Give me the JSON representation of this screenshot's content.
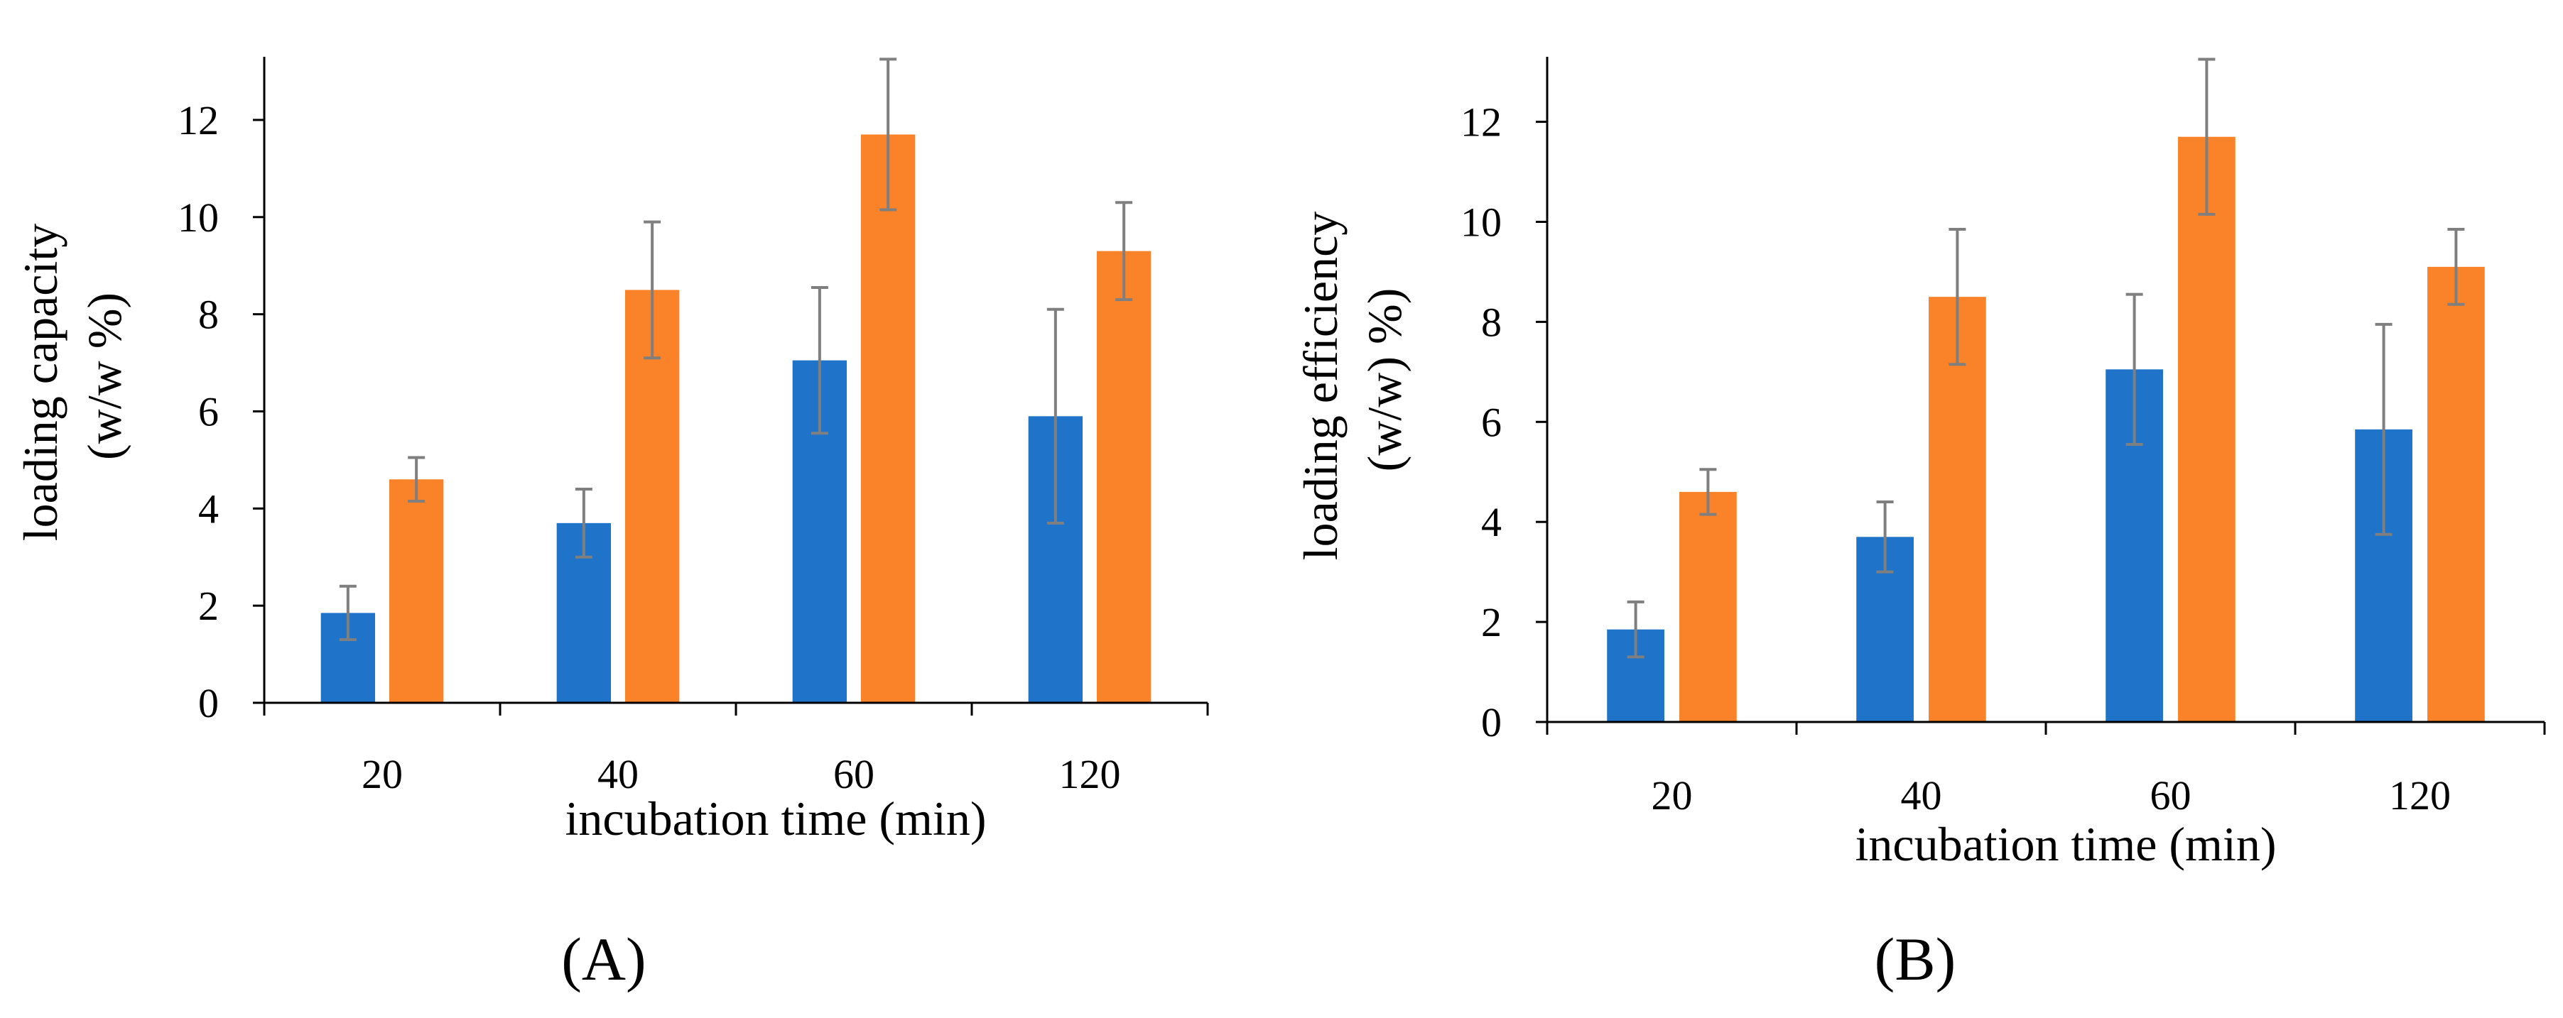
{
  "colors": {
    "series1": "#1f73c8",
    "series2": "#fa8228",
    "error_bar": "#7f7f7f",
    "axis": "#000000"
  },
  "chart_data": [
    {
      "type": "bar",
      "panel_label": "(A)",
      "title": "",
      "xlabel": "incubation time (min)",
      "ylabel_lines": [
        "loading capacity",
        "(w/w %)"
      ],
      "categories": [
        "20",
        "40",
        "60",
        "120"
      ],
      "ylim": [
        0,
        13.3
      ],
      "yticks": [
        0,
        2,
        4,
        6,
        8,
        10,
        12
      ],
      "ytick_labels": [
        "0",
        "2",
        "4",
        "6",
        "8",
        "10",
        "12"
      ],
      "grid": false,
      "legend": "none",
      "series": [
        {
          "name": "series 1",
          "color": "#1f73c8",
          "values": [
            1.85,
            3.7,
            7.05,
            5.9
          ],
          "errors": [
            0.55,
            0.7,
            1.5,
            2.2
          ]
        },
        {
          "name": "series 2",
          "color": "#fa8228",
          "values": [
            4.6,
            8.5,
            11.7,
            9.3
          ],
          "errors": [
            0.45,
            1.4,
            1.55,
            1.0
          ]
        }
      ]
    },
    {
      "type": "bar",
      "panel_label": "(B)",
      "title": "",
      "xlabel": "incubation time (min)",
      "ylabel_lines": [
        "loading efficiency",
        "(w/w) %)"
      ],
      "categories": [
        "20",
        "40",
        "60",
        "120"
      ],
      "ylim": [
        0,
        13.3
      ],
      "yticks": [
        0,
        2,
        4,
        6,
        8,
        10,
        12
      ],
      "ytick_labels": [
        "0",
        "2",
        "4",
        "6",
        "8",
        "10",
        "12"
      ],
      "grid": false,
      "legend": "none",
      "series": [
        {
          "name": "series 1",
          "color": "#1f73c8",
          "values": [
            1.85,
            3.7,
            7.05,
            5.85
          ],
          "errors": [
            0.55,
            0.7,
            1.5,
            2.1
          ]
        },
        {
          "name": "series 2",
          "color": "#fa8228",
          "values": [
            4.6,
            8.5,
            11.7,
            9.1
          ],
          "errors": [
            0.45,
            1.35,
            1.55,
            0.75
          ]
        }
      ]
    }
  ]
}
